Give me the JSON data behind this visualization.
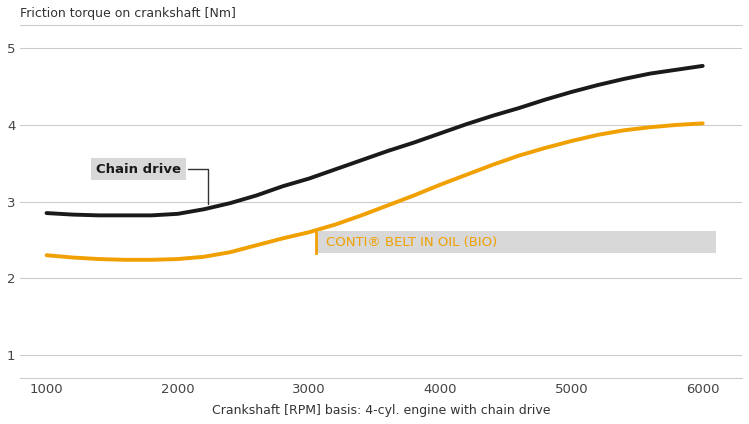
{
  "title": "Friction torque on crankshaft [Nm]",
  "xlabel": "Crankshaft [RPM] basis: 4-cyl. engine with chain drive",
  "xlim": [
    800,
    6300
  ],
  "ylim": [
    0.7,
    5.3
  ],
  "yticks": [
    1,
    2,
    3,
    4,
    5
  ],
  "xticks": [
    1000,
    2000,
    3000,
    4000,
    5000,
    6000
  ],
  "chain_x": [
    1000,
    1200,
    1400,
    1600,
    1800,
    2000,
    2200,
    2400,
    2600,
    2800,
    3000,
    3200,
    3400,
    3600,
    3800,
    4000,
    4200,
    4400,
    4600,
    4800,
    5000,
    5200,
    5400,
    5600,
    5800,
    6000
  ],
  "chain_y": [
    2.85,
    2.83,
    2.82,
    2.82,
    2.82,
    2.84,
    2.9,
    2.98,
    3.08,
    3.2,
    3.3,
    3.42,
    3.54,
    3.66,
    3.77,
    3.89,
    4.01,
    4.12,
    4.22,
    4.33,
    4.43,
    4.52,
    4.6,
    4.67,
    4.72,
    4.77
  ],
  "conti_x": [
    1000,
    1200,
    1400,
    1600,
    1800,
    2000,
    2200,
    2400,
    2600,
    2800,
    3000,
    3200,
    3400,
    3600,
    3800,
    4000,
    4200,
    4400,
    4600,
    4800,
    5000,
    5200,
    5400,
    5600,
    5800,
    6000
  ],
  "conti_y": [
    2.3,
    2.27,
    2.25,
    2.24,
    2.24,
    2.25,
    2.28,
    2.34,
    2.43,
    2.52,
    2.6,
    2.7,
    2.82,
    2.95,
    3.08,
    3.22,
    3.35,
    3.48,
    3.6,
    3.7,
    3.79,
    3.87,
    3.93,
    3.97,
    4.0,
    4.02
  ],
  "chain_color": "#1a1a1a",
  "conti_color": "#f0a000",
  "chain_label": "Chain drive",
  "conti_label": "CONTI® BELT IN OIL (BIO)",
  "bg_color": "#ffffff",
  "label_bg_color": "#d8d8d8",
  "grid_color": "#cccccc",
  "line_width": 2.8
}
